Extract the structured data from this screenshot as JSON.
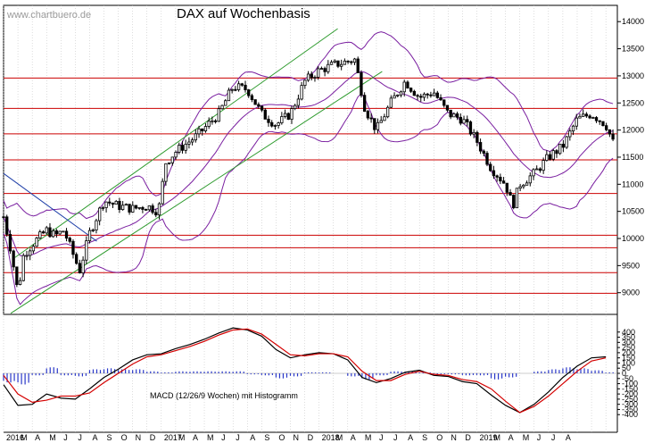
{
  "watermark": "www.chartbuero.de",
  "colors": {
    "candle": "#000000",
    "bollinger": "#7a1fa0",
    "trend": "#2e9b2e",
    "resistance": "#cc0000",
    "decline": "#1f3fa8",
    "macd_line": "#000000",
    "signal_line": "#d40000",
    "histogram": "#2a38c8",
    "grid": "#bbbbbb"
  },
  "chart_data": [
    {
      "type": "candlestick",
      "title": "DAX auf Wochenbasis",
      "xlabel": "",
      "ylabel": "",
      "x_range": [
        "2016-01",
        "2019-08"
      ],
      "ylim": [
        8600,
        14300
      ],
      "y_ticks": [
        9000,
        9500,
        10000,
        10500,
        11000,
        11500,
        12000,
        12500,
        13000,
        13500,
        14000
      ],
      "x_tick_labels": [
        "2016",
        "M",
        "A",
        "M",
        "J",
        "J",
        "A",
        "S",
        "O",
        "N",
        "D",
        "2017",
        "M",
        "A",
        "M",
        "J",
        "J",
        "A",
        "S",
        "O",
        "N",
        "D",
        "2018",
        "M",
        "A",
        "M",
        "J",
        "J",
        "A",
        "S",
        "O",
        "N",
        "D",
        "2019",
        "M",
        "A",
        "M",
        "J",
        "J",
        "A"
      ],
      "grid": "vertical monthly",
      "horizontal_levels": [
        8990,
        9370,
        9830,
        10060,
        10830,
        11450,
        11930,
        12400,
        12960
      ],
      "anchors": [
        {
          "m": 0,
          "v": 10400
        },
        {
          "m": 0.5,
          "v": 9800
        },
        {
          "m": 1.0,
          "v": 9000
        },
        {
          "m": 1.4,
          "v": 9700
        },
        {
          "m": 2.2,
          "v": 9950
        },
        {
          "m": 3.0,
          "v": 10150
        },
        {
          "m": 3.6,
          "v": 10050
        },
        {
          "m": 4.2,
          "v": 10150
        },
        {
          "m": 5.3,
          "v": 9400
        },
        {
          "m": 6.0,
          "v": 10100
        },
        {
          "m": 7.0,
          "v": 10700
        },
        {
          "m": 8.0,
          "v": 10600
        },
        {
          "m": 9.0,
          "v": 10550
        },
        {
          "m": 10.0,
          "v": 10600
        },
        {
          "m": 10.8,
          "v": 10500
        },
        {
          "m": 11.3,
          "v": 11400
        },
        {
          "m": 12.0,
          "v": 11600
        },
        {
          "m": 13.5,
          "v": 11900
        },
        {
          "m": 15.0,
          "v": 12300
        },
        {
          "m": 16.0,
          "v": 12800
        },
        {
          "m": 17.0,
          "v": 12750
        },
        {
          "m": 18.0,
          "v": 12300
        },
        {
          "m": 19.0,
          "v": 12100
        },
        {
          "m": 20.0,
          "v": 12300
        },
        {
          "m": 21.0,
          "v": 12900
        },
        {
          "m": 22.0,
          "v": 13100
        },
        {
          "m": 23.0,
          "v": 13200
        },
        {
          "m": 24.5,
          "v": 13300
        },
        {
          "m": 25.2,
          "v": 12400
        },
        {
          "m": 26.0,
          "v": 12000
        },
        {
          "m": 27.0,
          "v": 12500
        },
        {
          "m": 28.0,
          "v": 12900
        },
        {
          "m": 29.0,
          "v": 12600
        },
        {
          "m": 30.0,
          "v": 12700
        },
        {
          "m": 31.0,
          "v": 12300
        },
        {
          "m": 32.0,
          "v": 12200
        },
        {
          "m": 33.0,
          "v": 11800
        },
        {
          "m": 34.0,
          "v": 11300
        },
        {
          "m": 35.0,
          "v": 11000
        },
        {
          "m": 35.5,
          "v": 10600
        },
        {
          "m": 36.0,
          "v": 11000
        },
        {
          "m": 37.0,
          "v": 11200
        },
        {
          "m": 38.0,
          "v": 11500
        },
        {
          "m": 39.0,
          "v": 11700
        },
        {
          "m": 40.0,
          "v": 12200
        },
        {
          "m": 41.0,
          "v": 12300
        },
        {
          "m": 42.0,
          "v": 12100
        },
        {
          "m": 42.6,
          "v": 11700
        }
      ],
      "trend_channel": {
        "upper": [
          {
            "m": 0.8,
            "v": 9650
          },
          {
            "m": 23.3,
            "v": 13870
          }
        ],
        "lower": [
          {
            "m": 0.5,
            "v": 8620
          },
          {
            "m": 26.4,
            "v": 13080
          }
        ]
      },
      "decline_line": [
        {
          "m": 0,
          "v": 11200
        },
        {
          "m": 6.5,
          "v": 9950
        }
      ]
    },
    {
      "type": "line",
      "title": "MACD (12/26/9 Wochen) mit Histogramm",
      "ylim": [
        -450,
        450
      ],
      "y_ticks": [
        -400,
        -350,
        -300,
        -250,
        -200,
        -150,
        -100,
        -50,
        0,
        50,
        100,
        150,
        200,
        250,
        300,
        350,
        400
      ],
      "series": [
        {
          "role": "macd",
          "x": [
            0,
            1,
            2,
            3,
            4,
            5,
            6,
            7,
            8,
            9,
            10,
            11,
            12,
            13,
            14,
            15,
            16,
            17,
            18,
            19,
            20,
            21,
            22,
            23,
            24,
            25,
            26,
            27,
            28,
            29,
            30,
            31,
            32,
            33,
            34,
            35,
            36,
            37,
            38,
            39,
            40,
            41,
            42
          ],
          "values": [
            -110,
            -310,
            -300,
            -200,
            -240,
            -250,
            -150,
            -40,
            40,
            130,
            180,
            190,
            240,
            280,
            330,
            390,
            440,
            420,
            360,
            230,
            150,
            180,
            200,
            190,
            130,
            -40,
            -90,
            -50,
            10,
            30,
            -20,
            -30,
            -80,
            -100,
            -210,
            -310,
            -380,
            -300,
            -180,
            -40,
            70,
            150,
            160
          ]
        },
        {
          "role": "signal",
          "x": [
            0,
            1,
            2,
            3,
            4,
            5,
            6,
            7,
            8,
            9,
            10,
            11,
            12,
            13,
            14,
            15,
            16,
            17,
            18,
            19,
            20,
            21,
            22,
            23,
            24,
            25,
            26,
            27,
            28,
            29,
            30,
            31,
            32,
            33,
            34,
            35,
            36,
            37,
            38,
            39,
            40,
            41,
            42
          ],
          "values": [
            -20,
            -200,
            -280,
            -260,
            -220,
            -220,
            -190,
            -90,
            0,
            90,
            160,
            180,
            220,
            260,
            310,
            370,
            420,
            430,
            380,
            280,
            180,
            170,
            190,
            190,
            160,
            20,
            -70,
            -70,
            -10,
            20,
            -10,
            -20,
            -60,
            -80,
            -150,
            -270,
            -380,
            -320,
            -220,
            -100,
            20,
            120,
            150
          ]
        }
      ],
      "histogram": [
        -90,
        -110,
        -20,
        60,
        -20,
        -30,
        40,
        50,
        40,
        40,
        20,
        10,
        20,
        20,
        20,
        20,
        20,
        -10,
        -20,
        -50,
        -30,
        10,
        10,
        0,
        -30,
        -60,
        -20,
        20,
        20,
        10,
        -10,
        -10,
        -20,
        -20,
        -60,
        -40,
        0,
        20,
        40,
        60,
        50,
        30,
        10
      ]
    }
  ]
}
